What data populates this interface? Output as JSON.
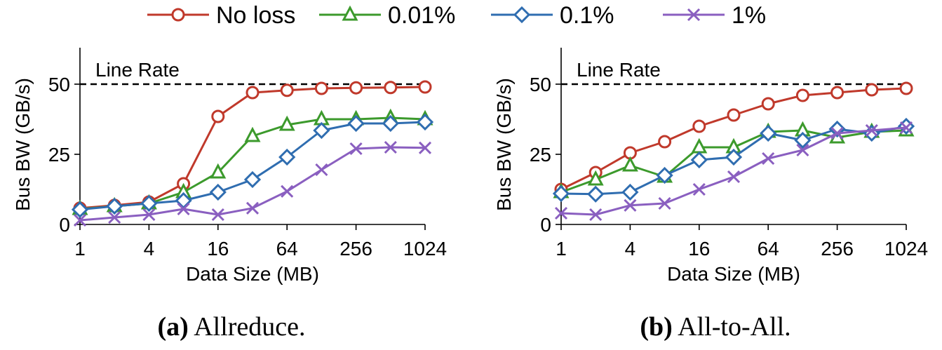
{
  "legend": [
    {
      "label": "No loss",
      "color": "#c0392b",
      "marker": "circle"
    },
    {
      "label": "0.01%",
      "color": "#3c9a2c",
      "marker": "triangle"
    },
    {
      "label": "0.1%",
      "color": "#2f6db0",
      "marker": "diamond"
    },
    {
      "label": "1%",
      "color": "#8a5fc0",
      "marker": "x"
    }
  ],
  "chart_data": [
    {
      "type": "line",
      "caption_prefix": "(a)",
      "caption_text": "Allreduce.",
      "title": "Allreduce.",
      "xlabel": "Data Size (MB)",
      "ylabel": "Bus BW (GB/s)",
      "x_scale": "log2",
      "xlim": [
        1,
        1024
      ],
      "ylim": [
        0,
        63
      ],
      "xticks": [
        1,
        4,
        16,
        64,
        256,
        1024
      ],
      "xtick_labels": [
        "1",
        "4",
        "16",
        "64",
        "256",
        "1024"
      ],
      "yticks": [
        0,
        25,
        50
      ],
      "ytick_labels": [
        "0",
        "25",
        "50"
      ],
      "reference_line": {
        "y": 50,
        "label": "Line Rate"
      },
      "x": [
        1,
        2,
        4,
        8,
        16,
        32,
        64,
        128,
        256,
        512,
        1024
      ],
      "series": [
        {
          "name": "No loss",
          "values": [
            5.8,
            6.8,
            8.0,
            14.5,
            38.5,
            47.0,
            47.8,
            48.5,
            48.7,
            48.8,
            49.0
          ]
        },
        {
          "name": "0.01%",
          "values": [
            5.5,
            6.5,
            7.5,
            11.5,
            18.5,
            31.5,
            35.5,
            37.5,
            37.5,
            38.0,
            37.5
          ]
        },
        {
          "name": "0.1%",
          "values": [
            5.3,
            6.5,
            7.5,
            8.5,
            11.5,
            16.0,
            24.0,
            33.5,
            36.0,
            36.0,
            36.5
          ]
        },
        {
          "name": "1%",
          "values": [
            1.5,
            2.5,
            3.5,
            5.5,
            3.5,
            5.8,
            11.8,
            19.5,
            27.0,
            27.5,
            27.3
          ]
        }
      ]
    },
    {
      "type": "line",
      "caption_prefix": "(b)",
      "caption_text": "All-to-All.",
      "title": "All-to-All.",
      "xlabel": "Data Size (MB)",
      "ylabel": "Bus BW (GB/s)",
      "x_scale": "log2",
      "xlim": [
        1,
        1024
      ],
      "ylim": [
        0,
        63
      ],
      "xticks": [
        1,
        4,
        16,
        64,
        256,
        1024
      ],
      "xtick_labels": [
        "1",
        "4",
        "16",
        "64",
        "256",
        "1024"
      ],
      "yticks": [
        0,
        25,
        50
      ],
      "ytick_labels": [
        "0",
        "25",
        "50"
      ],
      "reference_line": {
        "y": 50,
        "label": "Line Rate"
      },
      "x": [
        1,
        2,
        4,
        8,
        16,
        32,
        64,
        128,
        256,
        512,
        1024
      ],
      "series": [
        {
          "name": "No loss",
          "values": [
            12.5,
            18.5,
            25.5,
            29.5,
            35.0,
            39.0,
            43.0,
            46.0,
            47.0,
            48.0,
            48.5
          ]
        },
        {
          "name": "0.01%",
          "values": [
            11.5,
            16.0,
            21.0,
            17.0,
            27.5,
            27.5,
            33.0,
            33.5,
            31.0,
            33.0,
            33.5
          ]
        },
        {
          "name": "0.1%",
          "values": [
            11.0,
            10.8,
            11.5,
            17.5,
            23.0,
            24.0,
            32.5,
            30.0,
            34.0,
            32.5,
            35.0
          ]
        },
        {
          "name": "1%",
          "values": [
            4.0,
            3.5,
            6.8,
            7.5,
            12.5,
            17.0,
            23.5,
            26.5,
            32.5,
            33.5,
            34.5
          ]
        }
      ]
    }
  ]
}
